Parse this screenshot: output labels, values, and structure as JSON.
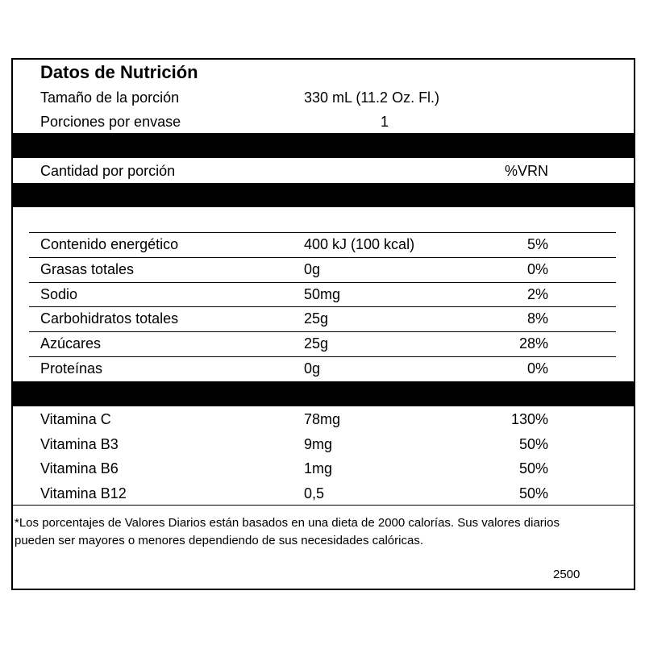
{
  "title": "Datos de Nutrición",
  "serving": [
    [
      "Tamaño de la porción",
      "330 mL (11.2 Oz. Fl.)"
    ],
    [
      "Porciones por envase",
      "1"
    ]
  ],
  "header": {
    "label": "Cantidad por porción",
    "pct": "%VRN"
  },
  "nutrients": [
    [
      "Contenido energético",
      "400 kJ (100 kcal)",
      "5%"
    ],
    [
      "Grasas totales",
      "0g",
      "0%"
    ],
    [
      "Sodio",
      "50mg",
      "2%"
    ],
    [
      "Carbohidratos totales",
      "25g",
      "8%"
    ],
    [
      "Azúcares",
      "25g",
      "28%"
    ],
    [
      "Proteínas",
      "0g",
      "0%"
    ]
  ],
  "vitamins": [
    [
      "Vitamina C",
      "78mg",
      "130%"
    ],
    [
      "Vitamina B3",
      "9mg",
      "50%"
    ],
    [
      "Vitamina B6",
      "1mg",
      "50%"
    ],
    [
      "Vitamina B12",
      "0,5",
      "50%"
    ]
  ],
  "footnote": [
    "*Los porcentajes de Valores Diarios están basados en una dieta de 2000 calorías. Sus valores diarios",
    "pueden ser mayores o menores dependiendo de sus necesidades calóricas."
  ],
  "calories_note": "2500"
}
